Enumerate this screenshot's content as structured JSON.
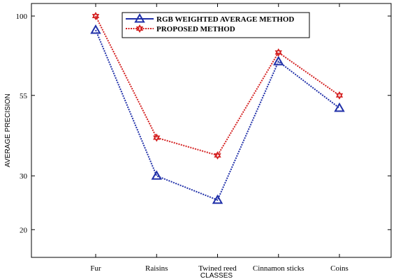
{
  "chart_data": {
    "type": "line",
    "title": "",
    "xlabel": "CLASSES",
    "ylabel": "AVERAGE PRECISION",
    "categories": [
      "Fur",
      "Raisins",
      "Twined reed",
      "Cinnamon sticks",
      "Coins"
    ],
    "y_ticks": [
      "100",
      "55",
      "30",
      "20"
    ],
    "y_scale": "log",
    "ylim": [
      15,
      100
    ],
    "grid": false,
    "legend_position": "top-center",
    "series": [
      {
        "name": "RGB WEIGHTED AVERAGE METHOD",
        "values": [
          90,
          30,
          25,
          71,
          50
        ],
        "color": "#1f2fa8",
        "marker": "triangle",
        "line_style": "dotted"
      },
      {
        "name": "PROPOSED METHOD",
        "values": [
          100,
          40,
          35,
          76,
          55
        ],
        "color": "#d42020",
        "marker": "hexagram",
        "line_style": "dotted"
      }
    ]
  }
}
